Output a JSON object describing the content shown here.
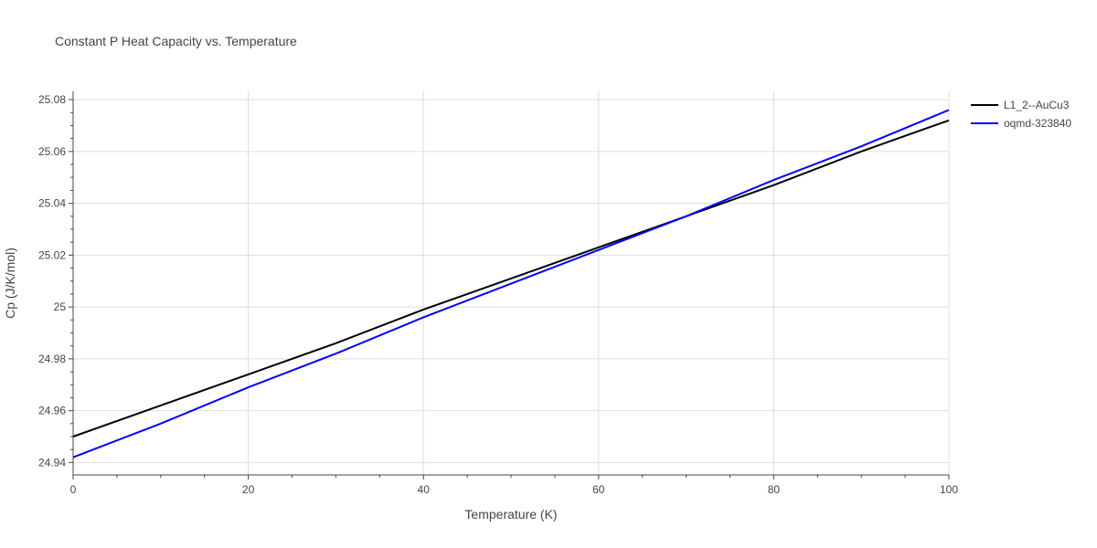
{
  "chart_data": {
    "type": "line",
    "title": "Constant P Heat Capacity vs. Temperature",
    "xlabel": "Temperature (K)",
    "ylabel": "Cp (J/K/mol)",
    "xlim": [
      0,
      100
    ],
    "ylim": [
      24.9352,
      25.0832
    ],
    "xticks": [
      0,
      20,
      40,
      60,
      80,
      100
    ],
    "xtick_labels": [
      "0",
      "20",
      "40",
      "60",
      "80",
      "100"
    ],
    "yticks": [
      24.94,
      24.96,
      24.98,
      25.0,
      25.02,
      25.04,
      25.06,
      25.08
    ],
    "ytick_labels": [
      "24.94",
      "24.96",
      "24.98",
      "25",
      "25.02",
      "25.04",
      "25.06",
      "25.08"
    ],
    "grid": true,
    "legend_position": "top-right",
    "series": [
      {
        "name": "L1_2--AuCu3",
        "color": "#000000",
        "x": [
          0,
          10,
          20,
          30,
          40,
          50,
          60,
          70,
          80,
          90,
          100
        ],
        "y": [
          24.95,
          24.962,
          24.974,
          24.986,
          24.999,
          25.011,
          25.023,
          25.035,
          25.047,
          25.06,
          25.072
        ]
      },
      {
        "name": "oqmd-323840",
        "color": "#0000ff",
        "x": [
          0,
          10,
          20,
          30,
          40,
          50,
          60,
          70,
          80,
          90,
          100
        ],
        "y": [
          24.942,
          24.955,
          24.969,
          24.982,
          24.996,
          25.009,
          25.022,
          25.035,
          25.049,
          25.062,
          25.076
        ]
      }
    ]
  }
}
